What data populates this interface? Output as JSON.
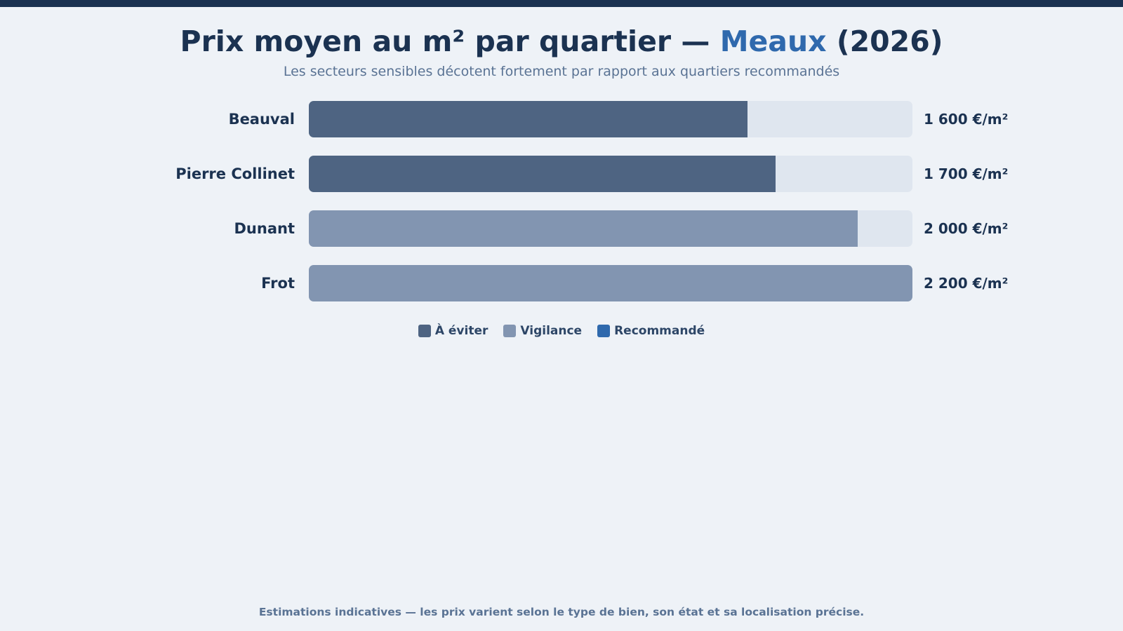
{
  "title": {
    "prefix": "Prix moyen au m² par quartier — ",
    "city": "Meaux",
    "suffix": " (2026)"
  },
  "subtitle": "Les secteurs sensibles décotent fortement par rapport aux quartiers recommandés",
  "colors": {
    "avoid": "#4e6482",
    "caution": "#8295b1",
    "recommended": "#2f69ad",
    "track": "#dfe6ef"
  },
  "chart_data": {
    "type": "bar",
    "orientation": "horizontal",
    "title": "Prix moyen au m² par quartier — Meaux (2026)",
    "subtitle": "Les secteurs sensibles décotent fortement par rapport aux quartiers recommandés",
    "unit": "€/m²",
    "xlim": [
      0,
      2200
    ],
    "grid": false,
    "legend_position": "bottom-center",
    "categories": [
      "Beauval",
      "Pierre Collinet",
      "Dunant",
      "Frot"
    ],
    "values": [
      1600,
      1700,
      2000,
      2200
    ],
    "value_labels": [
      "1 600 €/m²",
      "1 700 €/m²",
      "2 000 €/m²",
      "2 200 €/m²"
    ],
    "groups": [
      "avoid",
      "avoid",
      "caution",
      "caution"
    ],
    "legend": [
      {
        "key": "avoid",
        "label": "À éviter"
      },
      {
        "key": "caution",
        "label": "Vigilance"
      },
      {
        "key": "recommended",
        "label": "Recommandé"
      }
    ]
  },
  "footnote": "Estimations indicatives — les prix varient selon le type de bien, son état et sa localisation précise."
}
